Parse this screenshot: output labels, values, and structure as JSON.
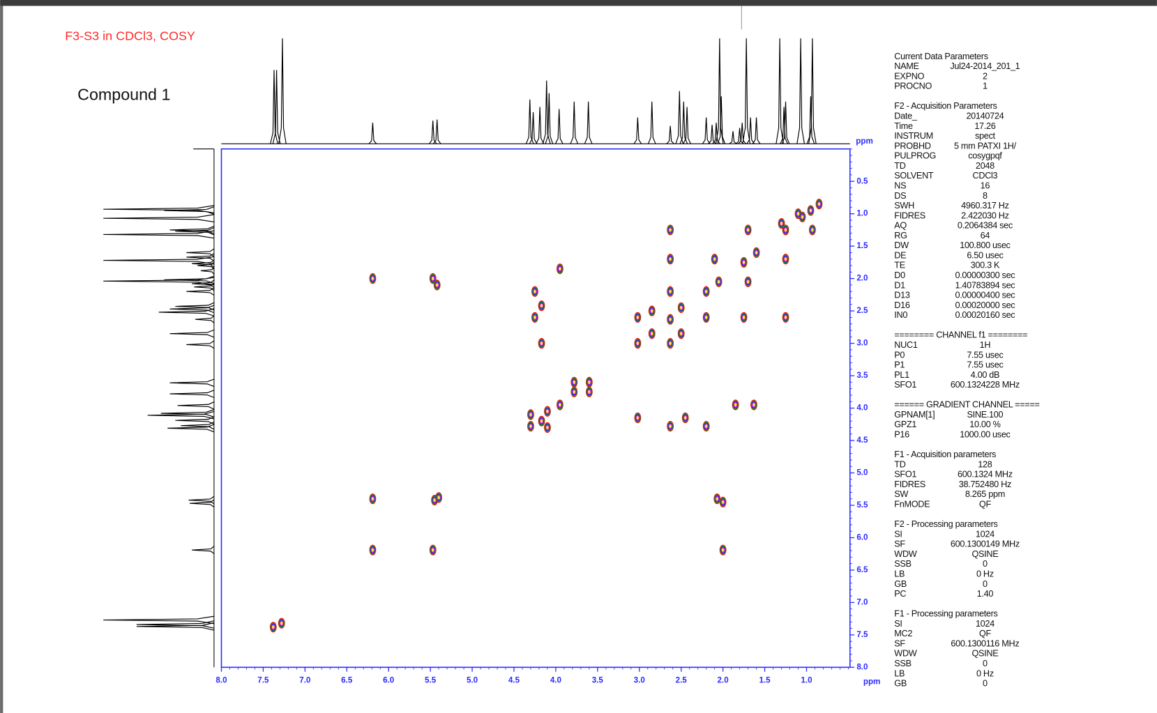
{
  "chart_data": {
    "type": "contour",
    "title": "F3-S3 in CDCl3, COSY",
    "subtitle": "Compound 1",
    "x_label": "ppm",
    "y_label": "ppm",
    "xlim": [
      8.0,
      0.48
    ],
    "ylim": [
      0.0,
      8.0
    ],
    "xticks": [
      {
        "value": 8,
        "label": "8.0"
      },
      7.5,
      {
        "value": 7,
        "label": "7.0"
      },
      6.5,
      {
        "value": 6,
        "label": "6.0"
      },
      5.5,
      {
        "value": 5,
        "label": "5.0"
      },
      4.5,
      {
        "value": 4,
        "label": "4.0"
      },
      3.5,
      {
        "value": 3,
        "label": "3.0"
      },
      2.5,
      {
        "value": 2,
        "label": "2.0"
      },
      1.5,
      {
        "value": 1,
        "label": "1.0"
      }
    ],
    "yticks": [
      0.5,
      {
        "value": 1,
        "label": "1.0"
      },
      1.5,
      {
        "value": 2,
        "label": "2.0"
      },
      2.5,
      {
        "value": 3,
        "label": "3.0"
      },
      3.5,
      {
        "value": 4,
        "label": "4.0"
      },
      4.5,
      {
        "value": 5,
        "label": "5.0"
      },
      5.5,
      {
        "value": 6,
        "label": "6.0"
      },
      6.5,
      {
        "value": 7,
        "label": "7.0"
      },
      7.5,
      {
        "value": 8,
        "label": "8.0"
      }
    ],
    "axis_color": "#2a2aff",
    "title_color": "#ff2a2a",
    "contour_colors": [
      "#ff0000",
      "#00b000",
      "#1a1aff",
      "#ff00ff",
      "#e0e000"
    ],
    "x": [
      7.38,
      7.28,
      6.19,
      6.19,
      6.19,
      5.47,
      5.42,
      5.45,
      5.4,
      5.47,
      4.3,
      4.3,
      4.25,
      4.25,
      4.17,
      4.17,
      4.17,
      4.1,
      4.1,
      3.95,
      3.95,
      3.78,
      3.78,
      3.6,
      3.6,
      3.02,
      3.02,
      3.02,
      2.85,
      2.85,
      2.63,
      2.63,
      2.63,
      2.63,
      2.63,
      2.63,
      2.5,
      2.5,
      2.45,
      2.2,
      2.2,
      2.2,
      2.1,
      2.05,
      2.07,
      2.0,
      2.0,
      1.85,
      1.63,
      1.75,
      1.7,
      1.75,
      1.7,
      1.6,
      1.25,
      1.25,
      1.25,
      1.3,
      1.05,
      0.95,
      0.93,
      1.1,
      0.85
    ],
    "values": [
      7.38,
      7.32,
      2.0,
      5.4,
      6.19,
      2.0,
      2.1,
      5.42,
      5.38,
      6.19,
      4.1,
      4.28,
      2.6,
      2.2,
      2.42,
      3.0,
      4.2,
      4.05,
      4.3,
      3.95,
      1.85,
      3.6,
      3.75,
      3.6,
      3.75,
      2.6,
      3.0,
      4.15,
      2.5,
      2.85,
      1.25,
      1.7,
      2.2,
      2.63,
      3.0,
      4.28,
      2.45,
      2.85,
      4.15,
      2.2,
      2.6,
      4.28,
      1.7,
      2.05,
      5.4,
      6.19,
      5.45,
      3.95,
      3.95,
      1.75,
      2.05,
      2.6,
      1.25,
      1.6,
      1.25,
      1.7,
      2.6,
      1.15,
      1.05,
      0.95,
      1.25,
      1.0,
      0.85
    ],
    "projection": {
      "x": [
        7.37,
        7.34,
        7.27,
        6.19,
        5.47,
        5.42,
        4.31,
        4.27,
        4.19,
        4.11,
        4.08,
        3.96,
        3.78,
        3.61,
        3.02,
        2.85,
        2.63,
        2.52,
        2.47,
        2.43,
        2.2,
        2.13,
        2.08,
        2.04,
        2.02,
        1.88,
        1.8,
        1.77,
        1.72,
        1.67,
        1.6,
        1.32,
        1.27,
        1.25,
        1.07,
        0.95,
        0.93
      ],
      "values": [
        70,
        70,
        100,
        20,
        22,
        23,
        42,
        30,
        35,
        60,
        48,
        33,
        40,
        40,
        25,
        40,
        17,
        50,
        40,
        35,
        25,
        18,
        20,
        100,
        45,
        12,
        15,
        20,
        100,
        25,
        25,
        100,
        35,
        40,
        100,
        45,
        100
      ]
    }
  },
  "parameters": [
    {
      "heading": "Current Data Parameters",
      "rows": [
        [
          "NAME",
          "Jul24-2014_201_1"
        ],
        [
          "EXPNO",
          "2"
        ],
        [
          "PROCNO",
          "1"
        ]
      ]
    },
    {
      "heading": "F2 - Acquisition Parameters",
      "rows": [
        [
          "Date_",
          "20140724"
        ],
        [
          "Time",
          "17.26"
        ],
        [
          "INSTRUM",
          "spect"
        ],
        [
          "PROBHD",
          "5 mm PATXI 1H/"
        ],
        [
          "PULPROG",
          "cosygpqf"
        ],
        [
          "TD",
          "2048"
        ],
        [
          "SOLVENT",
          "CDCl3"
        ],
        [
          "NS",
          "16"
        ],
        [
          "DS",
          "8"
        ],
        [
          "SWH",
          "4960.317 Hz"
        ],
        [
          "FIDRES",
          "2.422030 Hz"
        ],
        [
          "AQ",
          "0.2064384 sec"
        ],
        [
          "RG",
          "64"
        ],
        [
          "DW",
          "100.800 usec"
        ],
        [
          "DE",
          "6.50 usec"
        ],
        [
          "TE",
          "300.3 K"
        ],
        [
          "D0",
          "0.00000300 sec"
        ],
        [
          "D1",
          "1.40783894 sec"
        ],
        [
          "D13",
          "0.00000400 sec"
        ],
        [
          "D16",
          "0.00020000 sec"
        ],
        [
          "IN0",
          "0.00020160 sec"
        ]
      ]
    },
    {
      "heading": "======== CHANNEL f1 ========",
      "rows": [
        [
          "NUC1",
          "1H"
        ],
        [
          "P0",
          "7.55 usec"
        ],
        [
          "P1",
          "7.55 usec"
        ],
        [
          "PL1",
          "4.00 dB"
        ],
        [
          "SFO1",
          "600.1324228 MHz"
        ]
      ]
    },
    {
      "heading": "====== GRADIENT CHANNEL =====",
      "rows": [
        [
          "GPNAM[1]",
          "SINE.100"
        ],
        [
          "GPZ1",
          "10.00 %"
        ],
        [
          "P16",
          "1000.00 usec"
        ]
      ]
    },
    {
      "heading": "F1 - Acquisition parameters",
      "rows": [
        [
          "TD",
          "128"
        ],
        [
          "SFO1",
          "600.1324 MHz"
        ],
        [
          "FIDRES",
          "38.752480 Hz"
        ],
        [
          "SW",
          "8.265 ppm"
        ],
        [
          "FnMODE",
          "QF"
        ]
      ]
    },
    {
      "heading": "F2 - Processing parameters",
      "rows": [
        [
          "SI",
          "1024"
        ],
        [
          "SF",
          "600.1300149 MHz"
        ],
        [
          "WDW",
          "QSINE"
        ],
        [
          "SSB",
          "0"
        ],
        [
          "LB",
          "0 Hz"
        ],
        [
          "GB",
          "0"
        ],
        [
          "PC",
          "1.40"
        ]
      ]
    },
    {
      "heading": "F1 - Processing parameters",
      "rows": [
        [
          "SI",
          "1024"
        ],
        [
          "MC2",
          "QF"
        ],
        [
          "SF",
          "600.1300116 MHz"
        ],
        [
          "WDW",
          "QSINE"
        ],
        [
          "SSB",
          "0"
        ],
        [
          "LB",
          "0 Hz"
        ],
        [
          "GB",
          "0"
        ]
      ]
    }
  ]
}
